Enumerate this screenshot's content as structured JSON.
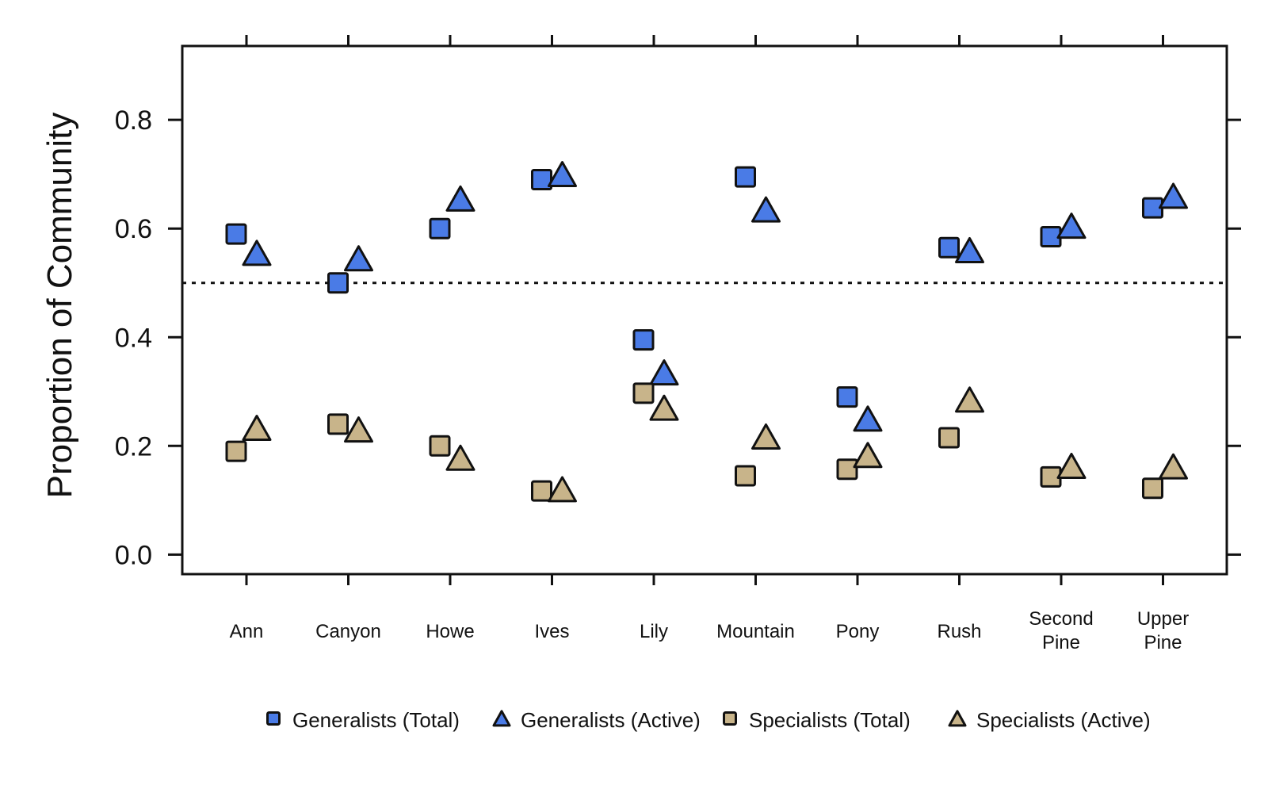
{
  "chart_data": {
    "type": "scatter",
    "title": "",
    "xlabel": "",
    "ylabel": "Proportion of Community",
    "categories": [
      "Ann",
      "Canyon",
      "Howe",
      "Ives",
      "Lily",
      "Mountain",
      "Pony",
      "Rush",
      "Second Pine",
      "Upper Pine"
    ],
    "category_lines": [
      [
        "Ann"
      ],
      [
        "Canyon"
      ],
      [
        "Howe"
      ],
      [
        "Ives"
      ],
      [
        "Lily"
      ],
      [
        "Mountain"
      ],
      [
        "Pony"
      ],
      [
        "Rush"
      ],
      [
        "Second",
        "Pine"
      ],
      [
        "Upper",
        "Pine"
      ]
    ],
    "ylim": [
      -0.036,
      0.936
    ],
    "yticks": [
      0.0,
      0.2,
      0.4,
      0.6,
      0.8
    ],
    "ytick_labels": [
      "0.0",
      "0.2",
      "0.4",
      "0.6",
      "0.8"
    ],
    "reference_line": 0.5,
    "grid": false,
    "legend_position": "bottom",
    "series": [
      {
        "name": "Generalists (Total)",
        "marker": "square",
        "color": "#4A7BE6",
        "values": [
          0.59,
          0.5,
          0.6,
          0.69,
          0.395,
          0.695,
          0.29,
          0.565,
          0.585,
          0.638
        ]
      },
      {
        "name": "Generalists (Active)",
        "marker": "triangle",
        "color": "#4A7BE6",
        "values": [
          0.55,
          0.54,
          0.65,
          0.695,
          0.33,
          0.63,
          0.245,
          0.555,
          0.6,
          0.655
        ]
      },
      {
        "name": "Specialists (Total)",
        "marker": "square",
        "color": "#C8B48A",
        "values": [
          0.19,
          0.24,
          0.2,
          0.117,
          0.297,
          0.145,
          0.157,
          0.215,
          0.143,
          0.122
        ]
      },
      {
        "name": "Specialists (Active)",
        "marker": "triangle",
        "color": "#C8B48A",
        "values": [
          0.228,
          0.225,
          0.173,
          0.115,
          0.265,
          0.212,
          0.178,
          0.28,
          0.158,
          0.157
        ]
      }
    ]
  }
}
